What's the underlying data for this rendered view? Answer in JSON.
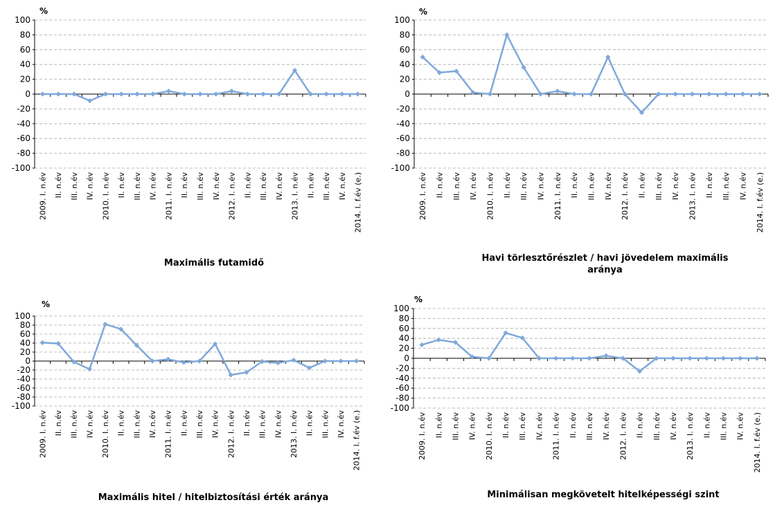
{
  "chart_data": [
    {
      "type": "line",
      "title": "Maximális futamidő",
      "ylabel": "%",
      "ylim": [
        -100,
        100
      ],
      "yticks": [
        100,
        80,
        60,
        40,
        20,
        0,
        -20,
        -40,
        -60,
        -80,
        -100
      ],
      "grid": "horizontal-dashed",
      "line_color": "#7fa8da",
      "categories": [
        "2009. I. n.év",
        "II. n.év",
        "III. n.év",
        "IV. n.év",
        "2010. I. n.év",
        "II. n.év",
        "III. n.év",
        "IV. n.év",
        "2011. I. n.év",
        "II. n.év",
        "III. n.év",
        "IV. n.év",
        "2012. I. n.év",
        "II. n.év",
        "III. n.év",
        "IV. n.év",
        "2013. I. n.év",
        "II. n.év",
        "III. n.év",
        "IV. n.év",
        "2014. I. f.év (e.)"
      ],
      "values": [
        0,
        0,
        0,
        -9,
        0,
        0,
        0,
        0,
        4,
        0,
        0,
        0,
        4,
        0,
        0,
        0,
        32,
        0,
        0,
        0,
        0
      ]
    },
    {
      "type": "line",
      "title": "Havi törlesztőrészlet / havi jövedelem maximális aránya",
      "ylabel": "%",
      "ylim": [
        -100,
        100
      ],
      "yticks": [
        100,
        80,
        60,
        40,
        20,
        0,
        -20,
        -40,
        -60,
        -80,
        -100
      ],
      "grid": "horizontal-dashed",
      "line_color": "#7fa8da",
      "categories": [
        "2009. I. n.év",
        "II. n.év",
        "III. n.év",
        "IV. n.év",
        "2010. I. n.év",
        "II. n.év",
        "III. n.év",
        "IV. n.év",
        "2011. I. n.év",
        "II. n.év",
        "III. n.év",
        "IV. n.év",
        "2012. I. n.év",
        "II. n.év",
        "III. n.év",
        "IV. n.év",
        "2013. I. n.év",
        "II. n.év",
        "III. n.év",
        "IV. n.év",
        "2014. I. f.év (e.)"
      ],
      "values": [
        50,
        29,
        31,
        2,
        0,
        80,
        36,
        0,
        4,
        0,
        0,
        50,
        0,
        -25,
        0,
        0,
        0,
        0,
        0,
        0,
        0
      ]
    },
    {
      "type": "line",
      "title": "Maximális hitel / hitelbiztosítási érték aránya",
      "ylabel": "%",
      "ylim": [
        -100,
        100
      ],
      "yticks": [
        100,
        80,
        60,
        40,
        20,
        0,
        -20,
        -40,
        -60,
        -80,
        -100
      ],
      "grid": "horizontal-dashed",
      "line_color": "#7fa8da",
      "categories": [
        "2009. I. n.év",
        "II. n.év",
        "III. n.év",
        "IV. n.év",
        "2010. I. n.év",
        "II. n.év",
        "III. n.év",
        "IV. n.év",
        "2011. I. n.év",
        "II. n.év",
        "III. n.év",
        "IV. n.év",
        "2012. I. n.év",
        "II. n.év",
        "III. n.év",
        "IV. n.év",
        "2013. I. n.év",
        "II. n.év",
        "III. n.év",
        "IV. n.év",
        "2014. I. f.év (e.)"
      ],
      "values": [
        41,
        39,
        -2,
        -18,
        82,
        71,
        35,
        0,
        4,
        -3,
        0,
        38,
        -31,
        -25,
        -1,
        -4,
        2,
        -15,
        0,
        0,
        0
      ]
    },
    {
      "type": "line",
      "title": "Minimálisan megkövetelt hitelképességi szint",
      "ylabel": "%",
      "ylim": [
        -100,
        100
      ],
      "yticks": [
        100,
        80,
        60,
        40,
        20,
        0,
        -20,
        -40,
        -60,
        -80,
        -100
      ],
      "grid": "horizontal-dashed",
      "line_color": "#7fa8da",
      "categories": [
        "2009. I. n.év",
        "II. n.év",
        "III. n.év",
        "IV. n.év",
        "2010. I. n.év",
        "II. n.év",
        "III. n.év",
        "IV. n.év",
        "2011. I. n.év",
        "II. n.év",
        "III. n.év",
        "IV. n.év",
        "2012. I. n.év",
        "II. n.év",
        "III. n.év",
        "IV. n.év",
        "2013. I. n.év",
        "II. n.év",
        "III. n.év",
        "IV. n.év",
        "2014. I. f.év (e.)"
      ],
      "values": [
        27,
        37,
        32,
        3,
        0,
        51,
        41,
        0,
        0,
        0,
        0,
        5,
        0,
        -26,
        0,
        0,
        0,
        0,
        0,
        0,
        0
      ]
    }
  ]
}
